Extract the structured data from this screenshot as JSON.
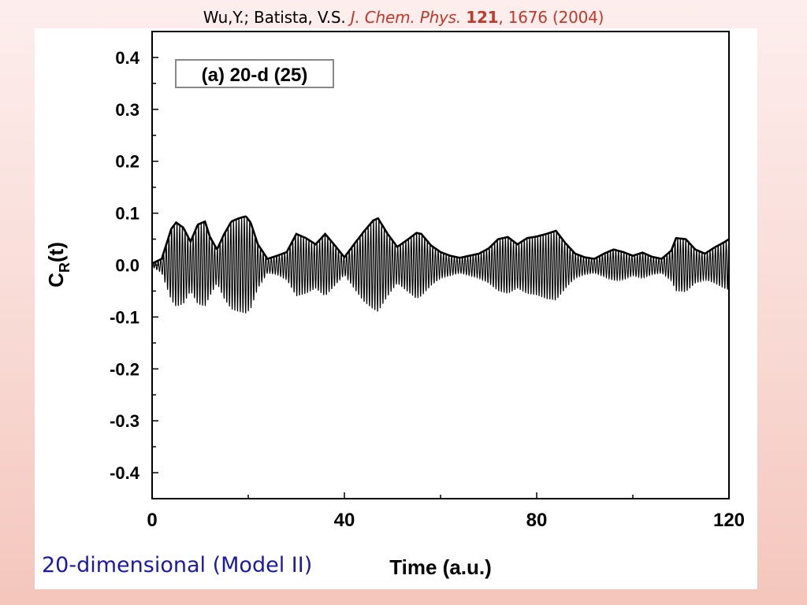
{
  "citation": {
    "authors": "Wu,Y.; Batista, V.S.",
    "journal": "J. Chem. Phys.",
    "volume": "121",
    "pages": ", 1676 (2004)"
  },
  "caption": "20-dimensional (Model II)",
  "chart_data": {
    "type": "line",
    "title": "(a) 20-d (25)",
    "xlabel": "Time (a.u.)",
    "ylabel_main": "C",
    "ylabel_sub": "R",
    "ylabel_tail": "(t)",
    "xlim": [
      0,
      120
    ],
    "ylim": [
      -0.45,
      0.45
    ],
    "x_ticks": [
      0,
      40,
      80,
      120
    ],
    "x_tick_labels": [
      "0",
      "40",
      "80",
      "120"
    ],
    "y_ticks": [
      0.4,
      0.3,
      0.2,
      0.1,
      0.0,
      -0.1,
      -0.2,
      -0.3,
      -0.4
    ],
    "y_tick_labels": [
      "0.4",
      "0.3",
      "0.2",
      "0.1",
      "0.0",
      "-0.1",
      "-0.2",
      "-0.3",
      "-0.4"
    ],
    "grid": false,
    "line_color": "#000000",
    "oscillation_period": 0.56,
    "envelope_x": [
      0,
      2,
      4,
      5,
      6.5,
      8,
      9.5,
      11,
      12,
      13.5,
      15,
      16.5,
      18,
      19.5,
      20.5,
      22,
      24,
      26,
      28,
      30,
      32,
      34,
      36,
      38,
      40,
      42,
      44,
      46,
      47,
      49,
      51,
      53,
      55,
      56,
      58,
      60,
      62,
      64,
      66,
      68,
      70,
      72,
      74,
      76,
      78,
      80,
      82,
      84,
      86,
      88,
      90,
      92,
      94,
      96,
      98,
      100,
      102,
      104,
      106,
      108,
      109,
      111,
      113,
      115,
      117,
      119,
      120
    ],
    "envelope_y": [
      0.003,
      0.012,
      0.07,
      0.082,
      0.072,
      0.045,
      0.078,
      0.084,
      0.055,
      0.03,
      0.06,
      0.084,
      0.09,
      0.094,
      0.082,
      0.04,
      0.012,
      0.018,
      0.025,
      0.06,
      0.052,
      0.04,
      0.06,
      0.038,
      0.015,
      0.04,
      0.064,
      0.086,
      0.09,
      0.06,
      0.035,
      0.048,
      0.062,
      0.06,
      0.038,
      0.025,
      0.018,
      0.014,
      0.018,
      0.022,
      0.032,
      0.05,
      0.054,
      0.04,
      0.052,
      0.055,
      0.06,
      0.066,
      0.042,
      0.022,
      0.015,
      0.012,
      0.022,
      0.03,
      0.025,
      0.018,
      0.024,
      0.016,
      0.012,
      0.028,
      0.052,
      0.05,
      0.03,
      0.022,
      0.034,
      0.044,
      0.05
    ],
    "lower_envelope_y": [
      -0.003,
      -0.015,
      -0.068,
      -0.08,
      -0.075,
      -0.05,
      -0.075,
      -0.08,
      -0.06,
      -0.035,
      -0.065,
      -0.085,
      -0.09,
      -0.093,
      -0.085,
      -0.045,
      -0.015,
      -0.018,
      -0.028,
      -0.06,
      -0.055,
      -0.045,
      -0.06,
      -0.04,
      -0.018,
      -0.045,
      -0.07,
      -0.085,
      -0.09,
      -0.06,
      -0.035,
      -0.05,
      -0.065,
      -0.06,
      -0.04,
      -0.025,
      -0.02,
      -0.015,
      -0.02,
      -0.025,
      -0.035,
      -0.05,
      -0.055,
      -0.045,
      -0.055,
      -0.058,
      -0.065,
      -0.068,
      -0.045,
      -0.025,
      -0.018,
      -0.015,
      -0.022,
      -0.03,
      -0.028,
      -0.02,
      -0.025,
      -0.018,
      -0.015,
      -0.03,
      -0.05,
      -0.052,
      -0.035,
      -0.028,
      -0.035,
      -0.045,
      -0.048
    ]
  }
}
